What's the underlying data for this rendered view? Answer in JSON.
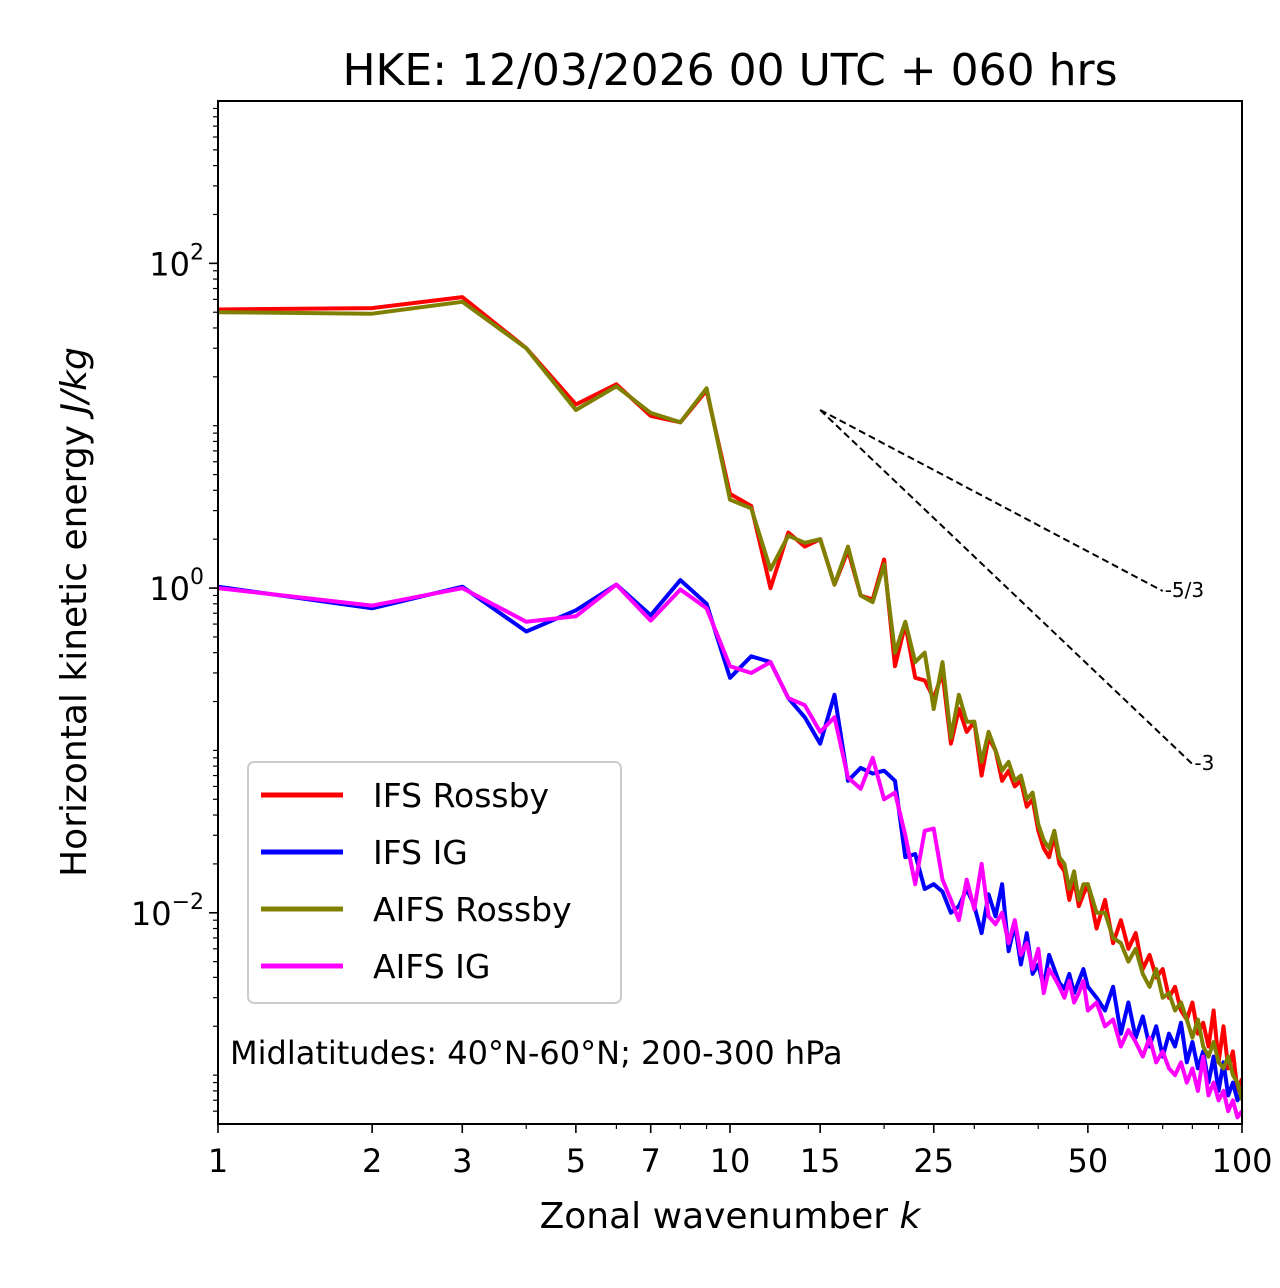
{
  "chart_data": {
    "type": "line",
    "title": "HKE: 12/03/2026 00 UTC + 060 hrs",
    "xlabel": "Zonal wavenumber",
    "xlabel_symbol": "k",
    "ylabel": "Horizontal kinetic energy",
    "ylabel_unit": "J/kg",
    "x_scale": "log",
    "y_scale": "log",
    "xlim": [
      1,
      100
    ],
    "ylim": [
      0.0005,
      1000
    ],
    "x_ticks": [
      1,
      2,
      3,
      5,
      7,
      10,
      15,
      25,
      50,
      100
    ],
    "x_tick_labels": [
      "1",
      "2",
      "3",
      "5",
      "7",
      "10",
      "15",
      "25",
      "50",
      "100"
    ],
    "y_ticks": [
      {
        "value": 100,
        "base": "10",
        "exp": "2"
      },
      {
        "value": 1,
        "base": "10",
        "exp": "0"
      },
      {
        "value": 0.01,
        "base": "10",
        "exp": "−2"
      }
    ],
    "annotation": "Midlatitudes: 40°N-60°N; 200-300 hPa",
    "legend_position": "lower-left",
    "reference_lines": [
      {
        "label": "-5/3",
        "slope": -1.6667,
        "x0": 15,
        "y0": 12.5,
        "x1": 70
      },
      {
        "label": "-3",
        "slope": -3,
        "x0": 15,
        "y0": 12.5,
        "x1": 80
      }
    ],
    "series": [
      {
        "name": "IFS Rossby",
        "color": "#ff0000",
        "x": [
          1,
          2,
          3,
          4,
          5,
          6,
          7,
          8,
          9,
          10,
          11,
          12,
          13,
          14,
          15,
          16,
          17,
          18,
          19,
          20,
          21,
          22,
          23,
          24,
          25,
          26,
          27,
          28,
          29,
          30,
          31,
          32,
          33,
          34,
          35,
          36,
          37,
          38,
          39,
          40,
          41,
          42,
          43,
          44,
          45,
          46,
          47,
          48,
          49,
          50,
          52,
          54,
          56,
          58,
          60,
          62,
          64,
          66,
          68,
          70,
          72,
          74,
          76,
          78,
          80,
          82,
          84,
          86,
          88,
          90,
          92,
          94,
          96,
          98,
          100
        ],
        "values": [
          52,
          53,
          62,
          30,
          13.5,
          18,
          11.5,
          10.5,
          16.5,
          3.8,
          3.2,
          1.0,
          2.2,
          1.8,
          2.0,
          1.05,
          1.7,
          0.9,
          0.85,
          1.5,
          0.33,
          0.6,
          0.28,
          0.27,
          0.21,
          0.3,
          0.11,
          0.18,
          0.13,
          0.15,
          0.07,
          0.12,
          0.1,
          0.065,
          0.075,
          0.06,
          0.065,
          0.045,
          0.05,
          0.032,
          0.025,
          0.022,
          0.03,
          0.02,
          0.018,
          0.012,
          0.016,
          0.011,
          0.013,
          0.015,
          0.008,
          0.012,
          0.0065,
          0.009,
          0.006,
          0.0075,
          0.0045,
          0.0055,
          0.004,
          0.0045,
          0.003,
          0.0035,
          0.0025,
          0.0022,
          0.0028,
          0.0018,
          0.0021,
          0.0015,
          0.0025,
          0.0012,
          0.002,
          0.0011,
          0.0014,
          0.0008,
          0.00095
        ]
      },
      {
        "name": "IFS IG",
        "color": "#0000ff",
        "x": [
          1,
          2,
          3,
          4,
          5,
          6,
          7,
          8,
          9,
          10,
          11,
          12,
          13,
          14,
          15,
          16,
          17,
          18,
          19,
          20,
          21,
          22,
          23,
          24,
          25,
          26,
          27,
          28,
          29,
          30,
          31,
          32,
          33,
          34,
          35,
          36,
          37,
          38,
          39,
          40,
          41,
          42,
          43,
          44,
          45,
          46,
          47,
          48,
          49,
          50,
          52,
          54,
          56,
          58,
          60,
          62,
          64,
          66,
          68,
          70,
          72,
          74,
          76,
          78,
          80,
          82,
          84,
          86,
          88,
          90,
          92,
          94,
          96,
          98,
          100
        ],
        "values": [
          1.02,
          0.75,
          1.02,
          0.54,
          0.73,
          1.05,
          0.68,
          1.12,
          0.8,
          0.28,
          0.38,
          0.35,
          0.21,
          0.16,
          0.11,
          0.22,
          0.065,
          0.078,
          0.072,
          0.075,
          0.065,
          0.022,
          0.023,
          0.014,
          0.015,
          0.0135,
          0.01,
          0.011,
          0.014,
          0.011,
          0.0075,
          0.013,
          0.0095,
          0.015,
          0.0058,
          0.0085,
          0.0048,
          0.0075,
          0.0042,
          0.0048,
          0.0035,
          0.0055,
          0.0045,
          0.0037,
          0.0034,
          0.0042,
          0.0032,
          0.0038,
          0.0045,
          0.0035,
          0.003,
          0.0025,
          0.0035,
          0.0018,
          0.0028,
          0.0017,
          0.0023,
          0.0015,
          0.002,
          0.0013,
          0.0018,
          0.0015,
          0.0021,
          0.0012,
          0.0016,
          0.0011,
          0.0014,
          0.0009,
          0.0013,
          0.0008,
          0.0012,
          0.00075,
          0.0009,
          0.0007,
          0.0008
        ]
      },
      {
        "name": "AIFS Rossby",
        "color": "#808000",
        "x": [
          1,
          2,
          3,
          4,
          5,
          6,
          7,
          8,
          9,
          10,
          11,
          12,
          13,
          14,
          15,
          16,
          17,
          18,
          19,
          20,
          21,
          22,
          23,
          24,
          25,
          26,
          27,
          28,
          29,
          30,
          31,
          32,
          33,
          34,
          35,
          36,
          37,
          38,
          39,
          40,
          41,
          42,
          43,
          44,
          45,
          46,
          47,
          48,
          49,
          50,
          52,
          54,
          56,
          58,
          60,
          62,
          64,
          66,
          68,
          70,
          72,
          74,
          76,
          78,
          80,
          82,
          84,
          86,
          88,
          90,
          92,
          94,
          96,
          98,
          100
        ],
        "values": [
          50,
          49,
          58,
          30,
          12.5,
          17.5,
          12,
          10.5,
          17,
          3.5,
          3.1,
          1.3,
          2.1,
          1.9,
          2.0,
          1.05,
          1.8,
          0.9,
          0.82,
          1.4,
          0.4,
          0.62,
          0.35,
          0.4,
          0.18,
          0.35,
          0.12,
          0.22,
          0.15,
          0.15,
          0.085,
          0.13,
          0.1,
          0.075,
          0.085,
          0.065,
          0.07,
          0.05,
          0.055,
          0.035,
          0.028,
          0.025,
          0.032,
          0.022,
          0.02,
          0.014,
          0.018,
          0.012,
          0.015,
          0.015,
          0.01,
          0.01,
          0.007,
          0.0065,
          0.005,
          0.006,
          0.0042,
          0.0035,
          0.0045,
          0.003,
          0.0032,
          0.0025,
          0.0028,
          0.0022,
          0.0017,
          0.0022,
          0.0015,
          0.0013,
          0.0016,
          0.0012,
          0.0011,
          0.0013,
          0.001,
          0.0009,
          0.0007
        ]
      },
      {
        "name": "AIFS IG",
        "color": "#ff00ff",
        "x": [
          1,
          2,
          3,
          4,
          5,
          6,
          7,
          8,
          9,
          10,
          11,
          12,
          13,
          14,
          15,
          16,
          17,
          18,
          19,
          20,
          21,
          22,
          23,
          24,
          25,
          26,
          27,
          28,
          29,
          30,
          31,
          32,
          33,
          34,
          35,
          36,
          37,
          38,
          39,
          40,
          41,
          42,
          43,
          44,
          45,
          46,
          47,
          48,
          49,
          50,
          52,
          54,
          56,
          58,
          60,
          62,
          64,
          66,
          68,
          70,
          72,
          74,
          76,
          78,
          80,
          82,
          84,
          86,
          88,
          90,
          92,
          94,
          96,
          98,
          100
        ],
        "values": [
          1.0,
          0.78,
          1.0,
          0.62,
          0.67,
          1.05,
          0.63,
          0.98,
          0.75,
          0.33,
          0.3,
          0.35,
          0.21,
          0.19,
          0.13,
          0.16,
          0.068,
          0.058,
          0.09,
          0.05,
          0.055,
          0.03,
          0.015,
          0.032,
          0.033,
          0.016,
          0.012,
          0.009,
          0.016,
          0.0105,
          0.02,
          0.0095,
          0.0085,
          0.01,
          0.0065,
          0.009,
          0.0055,
          0.0065,
          0.0045,
          0.006,
          0.0032,
          0.0045,
          0.004,
          0.0035,
          0.003,
          0.0038,
          0.0028,
          0.0032,
          0.0038,
          0.0025,
          0.0028,
          0.002,
          0.0022,
          0.0015,
          0.0019,
          0.0016,
          0.0013,
          0.0017,
          0.0012,
          0.0014,
          0.0011,
          0.001,
          0.0012,
          0.0009,
          0.0011,
          0.0008,
          0.0013,
          0.00075,
          0.0009,
          0.0007,
          0.0008,
          0.0006,
          0.0007,
          0.00055,
          0.0006
        ]
      }
    ]
  }
}
